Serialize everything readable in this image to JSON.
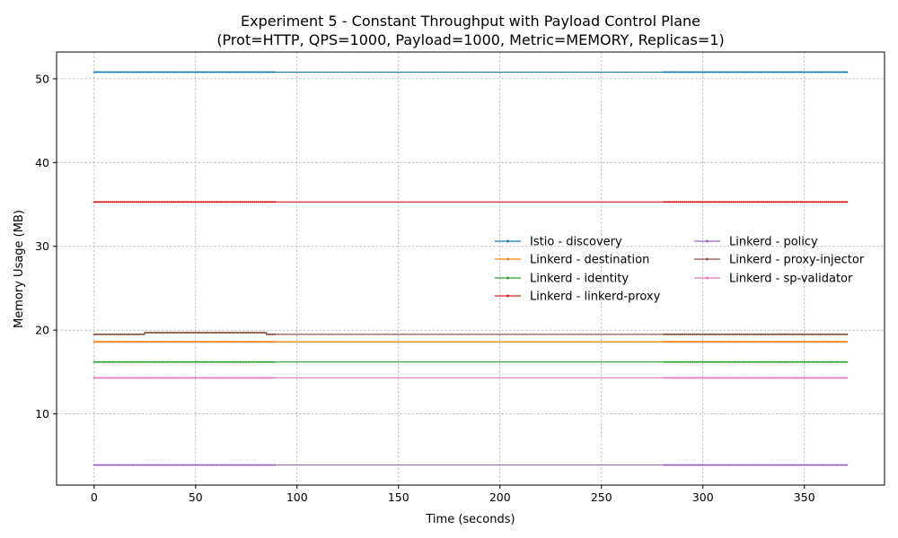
{
  "chart_data": {
    "type": "line",
    "title": "Experiment 5 - Constant Throughput with Payload Control Plane",
    "subtitle": "(Prot=HTTP, QPS=1000, Payload=1000, Metric=MEMORY, Replicas=1)",
    "xlabel": "Time (seconds)",
    "ylabel": "Memory Usage (MB)",
    "xlim": [
      -18.5,
      389.5
    ],
    "ylim": [
      1.5,
      53.2
    ],
    "xticks": [
      0,
      50,
      100,
      150,
      200,
      250,
      300,
      350
    ],
    "yticks": [
      10,
      20,
      30,
      40,
      50
    ],
    "grid": true,
    "legend_position": "center-right",
    "sample_segments": [
      [
        0,
        89
      ],
      [
        281,
        371
      ]
    ],
    "sample_step": 1.0,
    "series": [
      {
        "name": "Istio - discovery",
        "color": "#1f77b4",
        "values": [
          [
            0,
            50.8
          ],
          [
            371,
            50.8
          ]
        ]
      },
      {
        "name": "Linkerd - destination",
        "color": "#ff7f0e",
        "values": [
          [
            0,
            18.6
          ],
          [
            371,
            18.6
          ]
        ]
      },
      {
        "name": "Linkerd - identity",
        "color": "#2ca02c",
        "values": [
          [
            0,
            16.2
          ],
          [
            371,
            16.2
          ]
        ]
      },
      {
        "name": "Linkerd - linkerd-proxy",
        "color": "#d62728",
        "values": [
          [
            0,
            35.3
          ],
          [
            371,
            35.3
          ]
        ]
      },
      {
        "name": "Linkerd - policy",
        "color": "#9467bd",
        "values": [
          [
            0,
            3.9
          ],
          [
            371,
            3.9
          ]
        ]
      },
      {
        "name": "Linkerd - proxy-injector",
        "color": "#8c564b",
        "values": [
          [
            0,
            19.5
          ],
          [
            24,
            19.5
          ],
          [
            25,
            19.7
          ],
          [
            84,
            19.7
          ],
          [
            85,
            19.5
          ],
          [
            371,
            19.5
          ]
        ]
      },
      {
        "name": "Linkerd - sp-validator",
        "color": "#e377c2",
        "values": [
          [
            0,
            14.3
          ],
          [
            371,
            14.3
          ]
        ]
      }
    ]
  }
}
